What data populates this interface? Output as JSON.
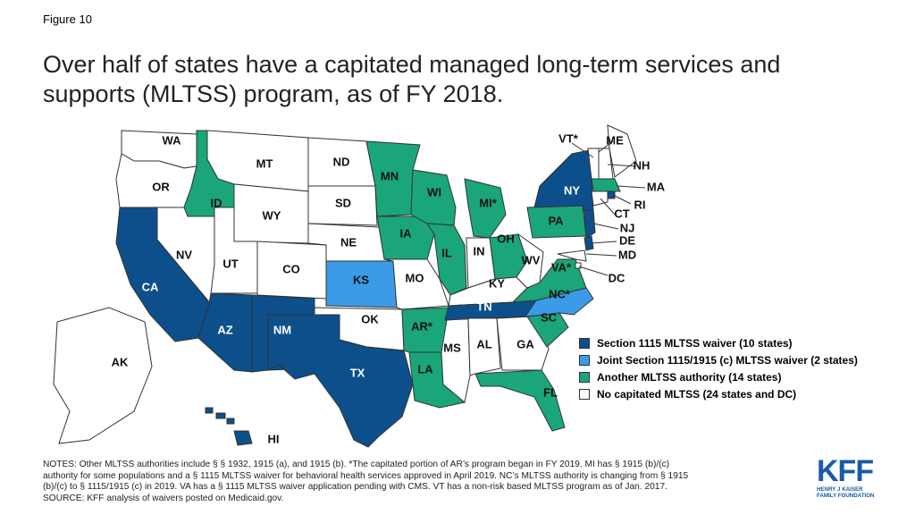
{
  "figure_label": "Figure 10",
  "title_line1": "Over half of states have a capitated managed long-term services and",
  "title_line2": "supports (MLTSS) program, as of FY 2018.",
  "colors": {
    "section1115": "#0d4f8b",
    "joint": "#3b9be8",
    "another": "#1aa67a",
    "none": "#ffffff"
  },
  "legend": [
    {
      "label": "Section 1115 MLTSS waiver (10 states)",
      "category": "section1115"
    },
    {
      "label": "Joint Section 1115/1915 (c) MLTSS waiver (2 states)",
      "category": "joint"
    },
    {
      "label": "Another MLTSS authority (14 states)",
      "category": "another"
    },
    {
      "label": "No capitated MLTSS (24 states and DC)",
      "category": "none"
    }
  ],
  "states": [
    {
      "label": "WA",
      "category": "none"
    },
    {
      "label": "OR",
      "category": "none"
    },
    {
      "label": "CA",
      "category": "section1115"
    },
    {
      "label": "NV",
      "category": "none"
    },
    {
      "label": "ID",
      "category": "another"
    },
    {
      "label": "MT",
      "category": "none"
    },
    {
      "label": "WY",
      "category": "none"
    },
    {
      "label": "UT",
      "category": "none"
    },
    {
      "label": "CO",
      "category": "none"
    },
    {
      "label": "AZ",
      "category": "section1115"
    },
    {
      "label": "NM",
      "category": "section1115"
    },
    {
      "label": "ND",
      "category": "none"
    },
    {
      "label": "SD",
      "category": "none"
    },
    {
      "label": "NE",
      "category": "none"
    },
    {
      "label": "KS",
      "category": "joint"
    },
    {
      "label": "OK",
      "category": "none"
    },
    {
      "label": "TX",
      "category": "section1115"
    },
    {
      "label": "MN",
      "category": "another"
    },
    {
      "label": "IA",
      "category": "another"
    },
    {
      "label": "MO",
      "category": "none"
    },
    {
      "label": "AR*",
      "category": "another"
    },
    {
      "label": "LA",
      "category": "another"
    },
    {
      "label": "WI",
      "category": "another"
    },
    {
      "label": "IL",
      "category": "another"
    },
    {
      "label": "MS",
      "category": "none"
    },
    {
      "label": "MI*",
      "category": "another"
    },
    {
      "label": "IN",
      "category": "none"
    },
    {
      "label": "OH",
      "category": "another"
    },
    {
      "label": "KY",
      "category": "none"
    },
    {
      "label": "TN",
      "category": "section1115"
    },
    {
      "label": "AL",
      "category": "none"
    },
    {
      "label": "GA",
      "category": "none"
    },
    {
      "label": "FL",
      "category": "another"
    },
    {
      "label": "SC",
      "category": "another"
    },
    {
      "label": "NC*",
      "category": "joint"
    },
    {
      "label": "VA*",
      "category": "another"
    },
    {
      "label": "WV",
      "category": "none"
    },
    {
      "label": "PA",
      "category": "another"
    },
    {
      "label": "NY",
      "category": "section1115"
    },
    {
      "label": "VT*",
      "category": "none"
    },
    {
      "label": "NH",
      "category": "none"
    },
    {
      "label": "ME",
      "category": "none"
    },
    {
      "label": "MA",
      "category": "another"
    },
    {
      "label": "RI",
      "category": "section1115"
    },
    {
      "label": "CT",
      "category": "none"
    },
    {
      "label": "NJ",
      "category": "section1115"
    },
    {
      "label": "DE",
      "category": "section1115"
    },
    {
      "label": "MD",
      "category": "none"
    },
    {
      "label": "DC",
      "category": "none"
    },
    {
      "label": "AK",
      "category": "none"
    },
    {
      "label": "HI",
      "category": "section1115"
    }
  ],
  "notes": [
    "NOTES: Other MLTSS authorities include § § 1932, 1915 (a), and 1915 (b). *The capitated portion of AR’s program began in FY 2019. MI has § 1915 (b)/(c)",
    "authority for some populations and a § 1115 MLTSS waiver for behavioral health services approved in April 2019. NC’s MLTSS authority is changing from § 1915",
    "(b)/(c) to § 1115/1915 (c) in 2019. VA has a § 1115 MLTSS waiver application pending with CMS. VT has a non-risk based MLTSS program as of Jan. 2017.",
    "SOURCE: KFF analysis of waivers posted on Medicaid.gov."
  ],
  "logo": {
    "mark": "KFF",
    "line1": "HENRY J KAISER",
    "line2": "FAMILY FOUNDATION"
  }
}
